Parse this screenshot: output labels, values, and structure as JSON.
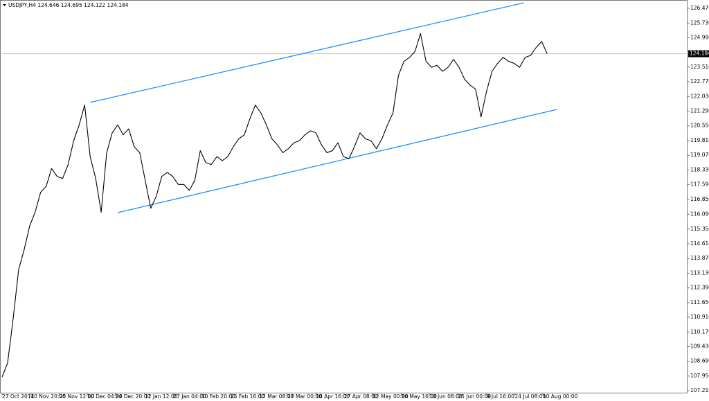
{
  "chart_data": {
    "type": "line",
    "title": "USDJPY,H4  124.646 124.695 124.122 124.184",
    "series": [
      {
        "name": "USDJPY,H4",
        "color": "#000000",
        "x": [
          0,
          1,
          2,
          3,
          4,
          5,
          6,
          7,
          8,
          9,
          10,
          11,
          12,
          13,
          14,
          15,
          16,
          17,
          18,
          19,
          20,
          21,
          22,
          23,
          24,
          25,
          26,
          27,
          28,
          29,
          30,
          31,
          32,
          33,
          34,
          35,
          36,
          37,
          38,
          39,
          40,
          41,
          42,
          43,
          44,
          45,
          46,
          47,
          48,
          49,
          50,
          51,
          52,
          53,
          54,
          55,
          56,
          57,
          58,
          59,
          60,
          61,
          62,
          63,
          64,
          65,
          66,
          67,
          68,
          69,
          70,
          71,
          72,
          73,
          74,
          75,
          76,
          77,
          78,
          79,
          80,
          81,
          82,
          83,
          84,
          85,
          86,
          87,
          88,
          89,
          90,
          91,
          92,
          93,
          94,
          95,
          96,
          97,
          98,
          99
        ],
        "values": [
          107.9,
          108.6,
          110.8,
          113.3,
          114.3,
          115.5,
          116.2,
          117.2,
          117.5,
          118.4,
          118.0,
          117.9,
          118.6,
          119.8,
          120.6,
          121.6,
          119.0,
          117.9,
          116.2,
          119.2,
          120.2,
          120.6,
          120.1,
          120.4,
          119.5,
          119.2,
          117.8,
          116.4,
          117.0,
          118.0,
          118.2,
          118.0,
          117.6,
          117.6,
          117.3,
          117.8,
          119.3,
          118.7,
          118.6,
          119.0,
          118.8,
          119.0,
          119.5,
          119.9,
          120.1,
          120.9,
          121.6,
          121.2,
          120.6,
          119.9,
          119.6,
          119.2,
          119.4,
          119.7,
          119.8,
          120.1,
          120.3,
          120.2,
          119.6,
          119.2,
          119.3,
          119.7,
          119.0,
          118.9,
          119.5,
          120.2,
          119.9,
          119.8,
          119.4,
          119.9,
          120.6,
          121.2,
          123.1,
          123.8,
          124.0,
          124.3,
          125.2,
          123.8,
          123.5,
          123.6,
          123.3,
          123.5,
          123.9,
          123.5,
          122.9,
          122.6,
          122.4,
          121.0,
          122.3,
          123.3,
          123.7,
          124.0,
          123.8,
          123.7,
          123.5,
          124.0,
          124.1,
          124.5,
          124.8,
          124.184
        ]
      }
    ],
    "trendlines": [
      {
        "x": [
          16.0,
          94.8
        ],
        "y": [
          121.73,
          126.75
        ],
        "color": "#1e90ff"
      },
      {
        "x": [
          21.0,
          100.8
        ],
        "y": [
          116.18,
          121.38
        ],
        "color": "#1e90ff"
      }
    ],
    "current_price": 124.184,
    "xlim": [
      0,
      124.5
    ],
    "xticks": [
      {
        "value": 0,
        "label": "27 Oct 2014"
      },
      {
        "value": 5.2,
        "label": "10 Nov 20:00"
      },
      {
        "value": 10.4,
        "label": "25 Nov 12:00"
      },
      {
        "value": 15.5,
        "label": "10 Dec 04:00"
      },
      {
        "value": 20.6,
        "label": "24 Dec 20:00"
      },
      {
        "value": 25.9,
        "label": "12 Jan 12:00"
      },
      {
        "value": 31.1,
        "label": "27 Jan 04:00"
      },
      {
        "value": 36.2,
        "label": "10 Feb 20:00"
      },
      {
        "value": 41.5,
        "label": "25 Feb 16:00"
      },
      {
        "value": 46.7,
        "label": "12 Mar 08:00"
      },
      {
        "value": 51.8,
        "label": "27 Mar 00:00"
      },
      {
        "value": 57.0,
        "label": "10 Apr 16:00"
      },
      {
        "value": 62.1,
        "label": "27 Apr 08:00"
      },
      {
        "value": 67.3,
        "label": "12 May 00:00"
      },
      {
        "value": 72.5,
        "label": "26 May 16:00"
      },
      {
        "value": 77.6,
        "label": "10 Jun 08:00"
      },
      {
        "value": 82.8,
        "label": "25 Jun 00:00"
      },
      {
        "value": 88.0,
        "label": "9 Jul 16:00"
      },
      {
        "value": 93.1,
        "label": "24 Jul 08:00"
      },
      {
        "value": 98.2,
        "label": "10 Aug 00:00"
      }
    ],
    "ylim": [
      107.11,
      126.89
    ],
    "yticks": [
      {
        "value": 126.47,
        "label": "126.470"
      },
      {
        "value": 125.73,
        "label": "125.730"
      },
      {
        "value": 124.99,
        "label": "124.990"
      },
      {
        "value": 123.51,
        "label": "123.510"
      },
      {
        "value": 122.77,
        "label": "122.770"
      },
      {
        "value": 122.03,
        "label": "122.030"
      },
      {
        "value": 121.29,
        "label": "121.290"
      },
      {
        "value": 120.55,
        "label": "120.550"
      },
      {
        "value": 119.81,
        "label": "119.810"
      },
      {
        "value": 119.07,
        "label": "119.070"
      },
      {
        "value": 118.33,
        "label": "118.330"
      },
      {
        "value": 117.59,
        "label": "117.590"
      },
      {
        "value": 116.85,
        "label": "116.850"
      },
      {
        "value": 116.09,
        "label": "116.090"
      },
      {
        "value": 115.35,
        "label": "115.350"
      },
      {
        "value": 114.61,
        "label": "114.610"
      },
      {
        "value": 113.87,
        "label": "113.870"
      },
      {
        "value": 113.13,
        "label": "113.130"
      },
      {
        "value": 112.39,
        "label": "112.390"
      },
      {
        "value": 111.65,
        "label": "111.650"
      },
      {
        "value": 110.91,
        "label": "110.910"
      },
      {
        "value": 110.17,
        "label": "110.170"
      },
      {
        "value": 109.43,
        "label": "109.430"
      },
      {
        "value": 108.69,
        "label": "108.690"
      },
      {
        "value": 107.95,
        "label": "107.950"
      },
      {
        "value": 107.21,
        "label": "107.210"
      }
    ],
    "grid": false
  }
}
